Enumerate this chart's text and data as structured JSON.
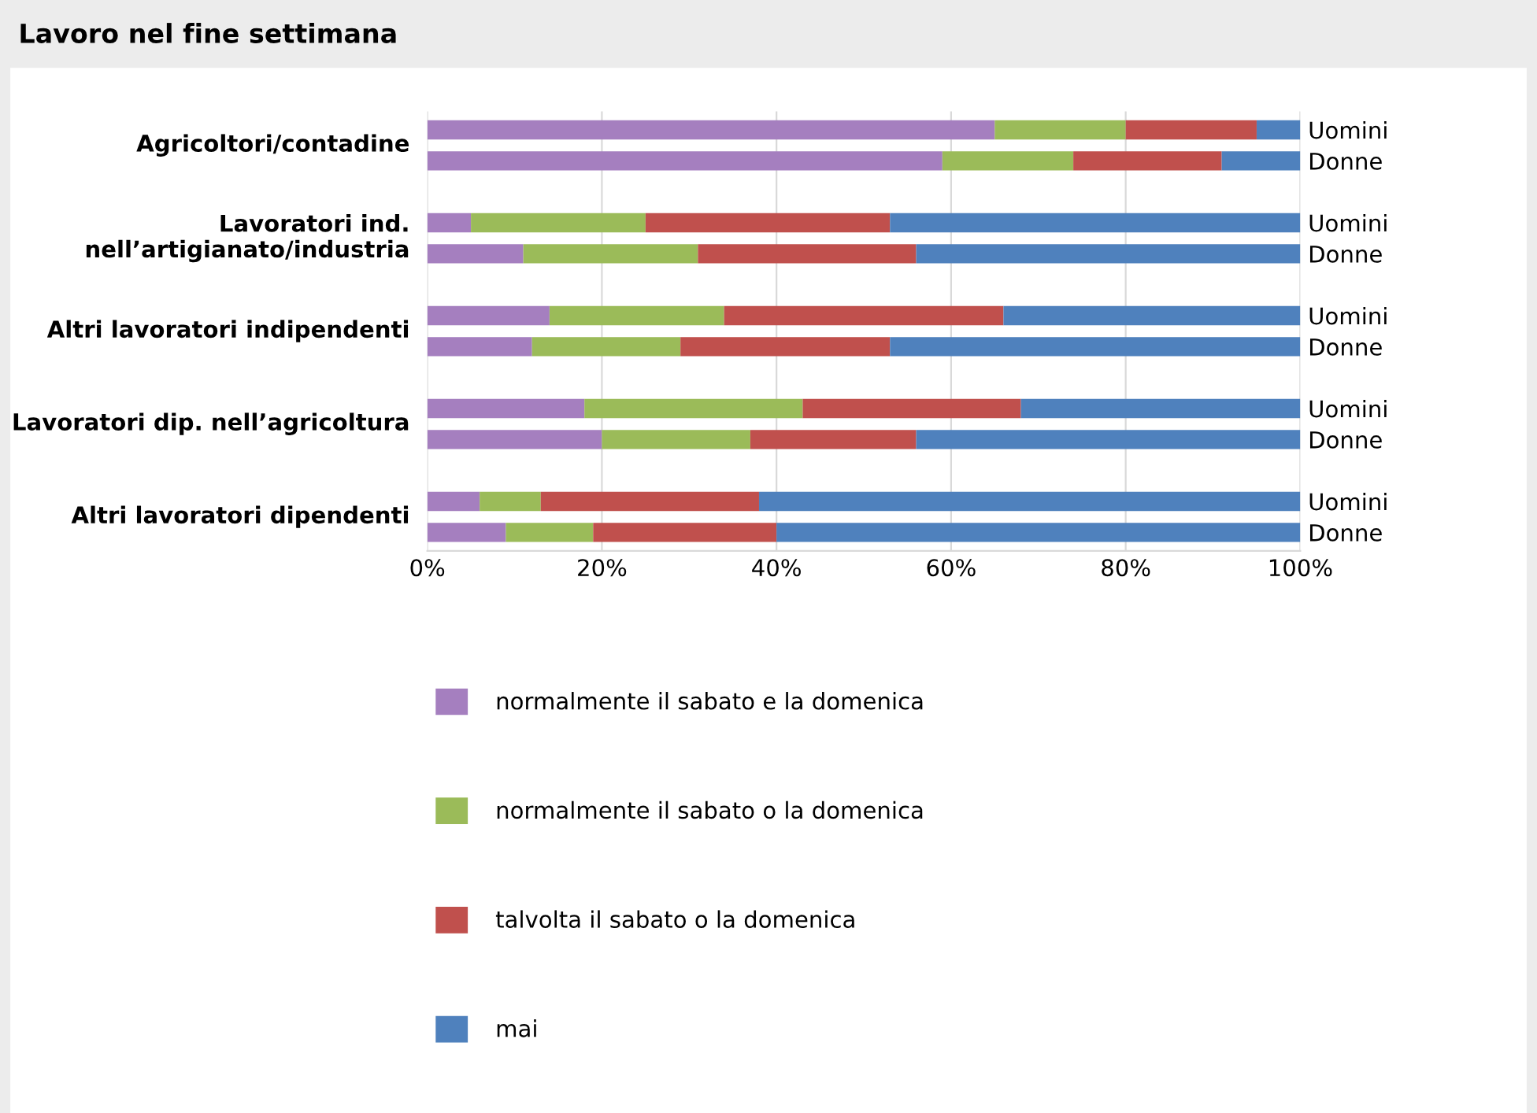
{
  "chart_data": {
    "type": "bar",
    "orientation": "horizontal",
    "stacked": true,
    "title": "Lavoro nel fine settimana",
    "categories": [
      "Uomini",
      "Donne",
      "Uomini",
      "Donne",
      "Uomini",
      "Donne",
      "Uomini",
      "Donne",
      "Uomini",
      "Donne"
    ],
    "annotations": [
      "Agricoltori/contadine",
      "Lavoratori ind.\nnell’artigianato/industria",
      "Altri lavoratori indipendenti",
      "Lavoratori dip. nell’agricoltura",
      "Altri lavoratori dipendenti"
    ],
    "series": [
      {
        "name": "normalmente il sabato e la domenica",
        "color": "#a57fbf",
        "values": [
          65,
          59,
          5,
          11,
          14,
          12,
          18,
          20,
          6,
          9
        ]
      },
      {
        "name": "normalmente il sabato o la domenica",
        "color": "#9bbb59",
        "values": [
          15,
          15,
          20,
          20,
          20,
          17,
          25,
          17,
          7,
          10
        ]
      },
      {
        "name": "talvolta il sabato o la domenica",
        "color": "#c0504d",
        "values": [
          15,
          17,
          28,
          25,
          32,
          24,
          25,
          19,
          25,
          21
        ]
      },
      {
        "name": "mai",
        "color": "#4f81bd",
        "values": [
          5,
          9,
          47,
          44,
          34,
          47,
          32,
          44,
          62,
          60
        ]
      }
    ],
    "xlim": [
      0,
      100
    ],
    "xticks": [
      {
        "value": 0,
        "label": "0%"
      },
      {
        "value": 20,
        "label": "20%"
      },
      {
        "value": 40,
        "label": "40%"
      },
      {
        "value": 60,
        "label": "60%"
      },
      {
        "value": 80,
        "label": "80%"
      },
      {
        "value": 100,
        "label": "100%"
      }
    ],
    "grid": "x",
    "legend": "bottom"
  }
}
